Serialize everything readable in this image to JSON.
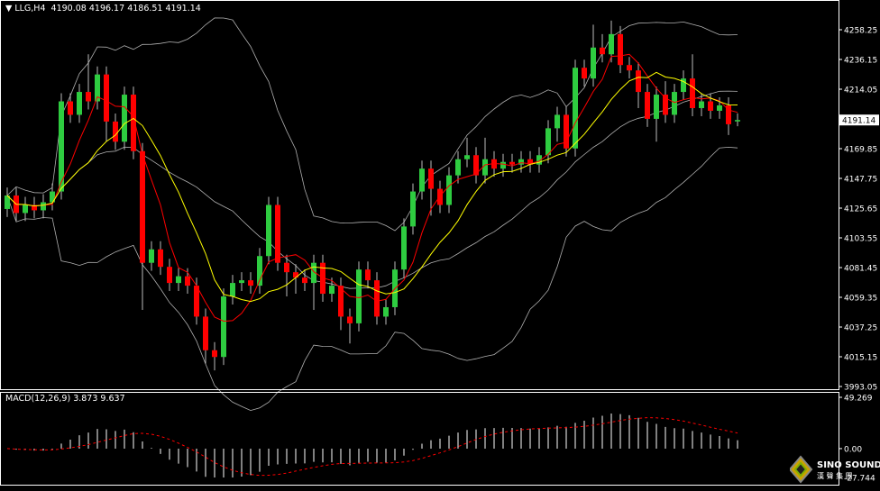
{
  "header": {
    "symbol": "LLG,H4",
    "open": "4190.08",
    "high": "4196.17",
    "low": "4186.51",
    "close": "4191.14"
  },
  "macd_label": {
    "name": "MACD(12,26,9)",
    "main": "3.873",
    "signal": "9.637"
  },
  "logo": {
    "text_en": "SINO SOUND",
    "text_cn": "漢 聲 集 團"
  },
  "colors": {
    "bull": "#2ecc40",
    "bear": "#ff0000",
    "ma_fast": "#ff0000",
    "ma_slow": "#ffff00",
    "bands": "#b0b0b0",
    "macd_hist": "#ffffff",
    "macd_signal": "#ff0000",
    "background": "#000000"
  },
  "chart_data": {
    "type": "candlestick",
    "title": "LLG,H4",
    "price_axis": {
      "ticks": [
        "4258.25",
        "4236.15",
        "4214.05",
        "4191.14",
        "4169.85",
        "4147.75",
        "4125.65",
        "4103.55",
        "4081.45",
        "4059.35",
        "4037.25",
        "4015.15",
        "3993.05"
      ],
      "current": "4191.14",
      "ylim": [
        3993.05,
        4258.25
      ]
    },
    "macd_axis": {
      "ticks": [
        "49.269",
        "0.00",
        "-27.744"
      ],
      "ylim": [
        -27.744,
        49.269
      ]
    },
    "indicators": [
      "Bollinger Bands(20)",
      "MA(5)",
      "MA(10)",
      "MACD(12,26,9)"
    ],
    "open": [
      4125,
      4135,
      4122,
      4128,
      4124,
      4130,
      4138,
      4205,
      4195,
      4212,
      4205,
      4225,
      4190,
      4175,
      4210,
      4168,
      4085,
      4095,
      4082,
      4070,
      4075,
      4068,
      4045,
      4020,
      4015,
      4060,
      4070,
      4072,
      4068,
      4090,
      4128,
      4085,
      4078,
      4074,
      4070,
      4085,
      4062,
      4068,
      4045,
      4040,
      4080,
      4072,
      4045,
      4052,
      4080,
      4112,
      4138,
      4155,
      4140,
      4128,
      4150,
      4162,
      4165,
      4150,
      4162,
      4155,
      4160,
      4158,
      4162,
      4158,
      4165,
      4185,
      4195,
      4170,
      4230,
      4222,
      4245,
      4240,
      4255,
      4232,
      4228,
      4212,
      4192,
      4210,
      4195,
      4212,
      4222,
      4200,
      4205,
      4198,
      4202,
      4190.08
    ],
    "high": [
      4141,
      4141,
      4134,
      4134,
      4136,
      4144,
      4211,
      4211,
      4218,
      4240,
      4231,
      4231,
      4196,
      4216,
      4216,
      4174,
      4101,
      4101,
      4088,
      4081,
      4081,
      4074,
      4051,
      4026,
      4066,
      4076,
      4078,
      4078,
      4096,
      4134,
      4134,
      4091,
      4084,
      4080,
      4091,
      4091,
      4074,
      4074,
      4051,
      4086,
      4086,
      4078,
      4058,
      4086,
      4118,
      4144,
      4161,
      4161,
      4146,
      4156,
      4168,
      4178,
      4171,
      4178,
      4168,
      4166,
      4166,
      4168,
      4168,
      4171,
      4191,
      4201,
      4201,
      4236,
      4236,
      4262,
      4255,
      4265,
      4261,
      4238,
      4234,
      4218,
      4216,
      4220,
      4218,
      4228,
      4240,
      4211,
      4211,
      4208,
      4208,
      4196.17
    ],
    "low": [
      4119,
      4116,
      4116,
      4118,
      4118,
      4124,
      4132,
      4189,
      4189,
      4199,
      4199,
      4175,
      4169,
      4169,
      4162,
      4050,
      4079,
      4076,
      4064,
      4064,
      4062,
      4039,
      4010,
      4005,
      4009,
      4054,
      4064,
      4062,
      4062,
      4084,
      4079,
      4060,
      4062,
      4064,
      4050,
      4056,
      4056,
      4035,
      4025,
      4034,
      4066,
      4039,
      4039,
      4046,
      4074,
      4106,
      4132,
      4120,
      4122,
      4122,
      4144,
      4156,
      4144,
      4144,
      4149,
      4149,
      4152,
      4152,
      4152,
      4152,
      4159,
      4175,
      4164,
      4164,
      4216,
      4216,
      4234,
      4234,
      4226,
      4222,
      4200,
      4186,
      4175,
      4189,
      4189,
      4206,
      4194,
      4194,
      4192,
      4192,
      4180,
      4186.51
    ],
    "close": [
      4135,
      4122,
      4128,
      4124,
      4130,
      4138,
      4205,
      4195,
      4212,
      4205,
      4225,
      4190,
      4175,
      4210,
      4168,
      4085,
      4095,
      4082,
      4070,
      4075,
      4068,
      4045,
      4020,
      4015,
      4060,
      4070,
      4072,
      4068,
      4090,
      4128,
      4085,
      4078,
      4074,
      4070,
      4085,
      4062,
      4068,
      4045,
      4040,
      4080,
      4072,
      4045,
      4052,
      4080,
      4112,
      4138,
      4155,
      4140,
      4128,
      4150,
      4162,
      4165,
      4150,
      4162,
      4155,
      4160,
      4158,
      4162,
      4158,
      4165,
      4185,
      4195,
      4170,
      4230,
      4222,
      4245,
      4240,
      4255,
      4232,
      4228,
      4212,
      4192,
      4210,
      4195,
      4212,
      4222,
      4200,
      4205,
      4198,
      4202,
      4188,
      4191.14
    ]
  }
}
